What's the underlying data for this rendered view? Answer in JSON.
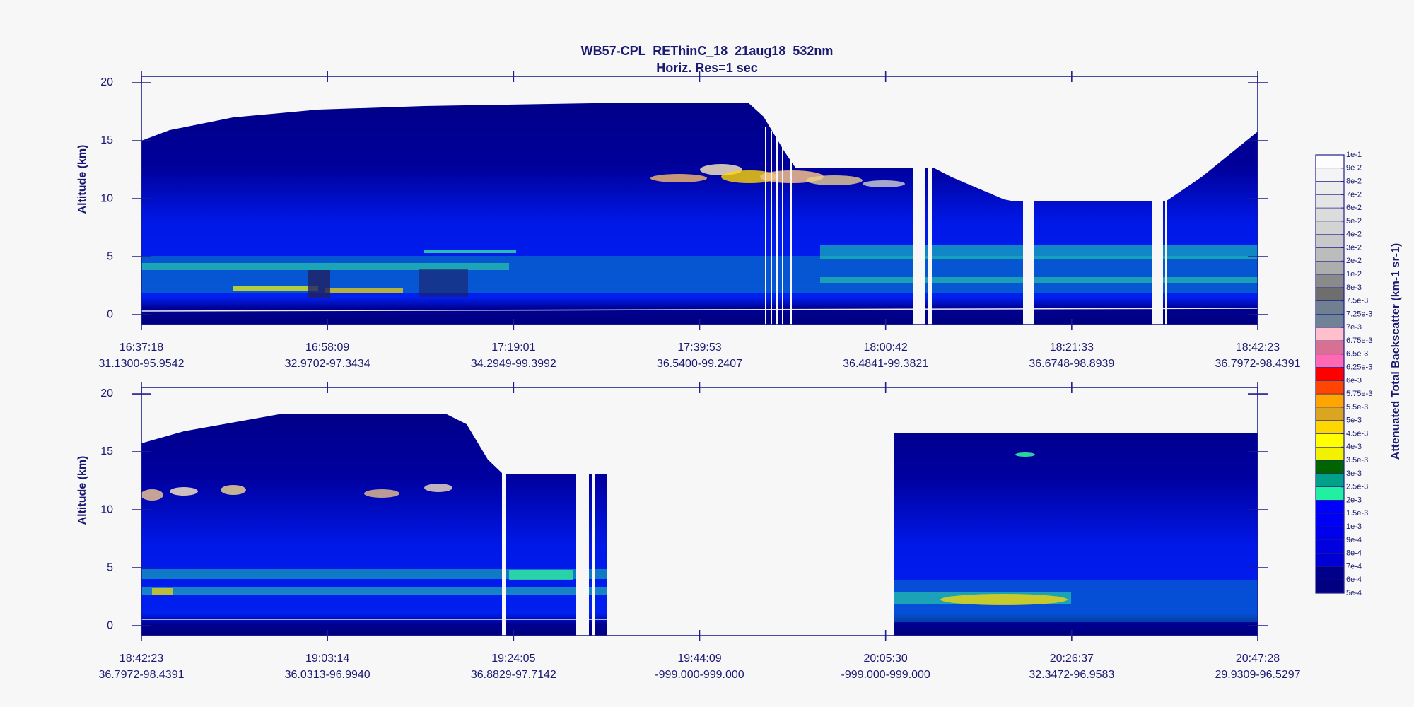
{
  "chart_data": [
    {
      "type": "heatmap",
      "title": "WB57-CPL  REThinC_18  21aug18  532nm",
      "subtitle": "Horiz. Res=1 sec",
      "ylabel": "Altitude (km)",
      "x": [
        "16:37:18",
        "16:58:09",
        "17:19:01",
        "17:39:53",
        "18:00:42",
        "18:21:33",
        "18:42:23"
      ],
      "x_sublabels": [
        "31.1300-95.9542",
        "32.9702-97.3434",
        "34.2949-99.3992",
        "36.5400-99.2407",
        "36.4841-99.3821",
        "36.6748-98.8939",
        "36.7972-98.4391"
      ],
      "ylim": [
        -0.85,
        20.55
      ],
      "yticks": [
        0,
        5,
        10,
        15,
        20
      ]
    },
    {
      "type": "heatmap",
      "ylabel": "Altitude (km)",
      "x": [
        "18:42:23",
        "19:03:14",
        "19:24:05",
        "19:44:09",
        "20:05:30",
        "20:26:37",
        "20:47:28"
      ],
      "x_sublabels": [
        "36.7972-98.4391",
        "36.0313-96.9940",
        "36.8829-97.7142",
        "-999.000-999.000",
        "-999.000-999.000",
        "32.3472-96.9583",
        "29.9309-96.5297"
      ],
      "ylim": [
        -0.85,
        20.55
      ],
      "yticks": [
        0,
        5,
        10,
        15,
        20
      ]
    }
  ],
  "colorbar": {
    "label": "Attenuated Total Backscatter (km-1 sr-1)",
    "ticks": [
      {
        "value": 0.1,
        "label": "1e-1"
      },
      {
        "value": 0.09,
        "label": "9e-2"
      },
      {
        "value": 0.08,
        "label": "8e-2"
      },
      {
        "value": 0.07,
        "label": "7e-2"
      },
      {
        "value": 0.06,
        "label": "6e-2"
      },
      {
        "value": 0.05,
        "label": "5e-2"
      },
      {
        "value": 0.04,
        "label": "4e-2"
      },
      {
        "value": 0.03,
        "label": "3e-2"
      },
      {
        "value": 0.02,
        "label": "2e-2"
      },
      {
        "value": 0.01,
        "label": "1e-2"
      },
      {
        "value": 0.008,
        "label": "8e-3"
      },
      {
        "value": 0.0075,
        "label": "7.5e-3"
      },
      {
        "value": 0.00725,
        "label": "7.25e-3"
      },
      {
        "value": 0.007,
        "label": "7e-3"
      },
      {
        "value": 0.00675,
        "label": "6.75e-3"
      },
      {
        "value": 0.0065,
        "label": "6.5e-3"
      },
      {
        "value": 0.00625,
        "label": "6.25e-3"
      },
      {
        "value": 0.006,
        "label": "6e-3"
      },
      {
        "value": 0.00575,
        "label": "5.75e-3"
      },
      {
        "value": 0.0055,
        "label": "5.5e-3"
      },
      {
        "value": 0.005,
        "label": "5e-3"
      },
      {
        "value": 0.0045,
        "label": "4.5e-3"
      },
      {
        "value": 0.004,
        "label": "4e-3"
      },
      {
        "value": 0.0035,
        "label": "3.5e-3"
      },
      {
        "value": 0.003,
        "label": "3e-3"
      },
      {
        "value": 0.0025,
        "label": "2.5e-3"
      },
      {
        "value": 0.002,
        "label": "2e-3"
      },
      {
        "value": 0.0015,
        "label": "1.5e-3"
      },
      {
        "value": 0.001,
        "label": "1e-3"
      },
      {
        "value": 0.0009,
        "label": "9e-4"
      },
      {
        "value": 0.0008,
        "label": "8e-4"
      },
      {
        "value": 0.0007,
        "label": "7e-4"
      },
      {
        "value": 0.0006,
        "label": "6e-4"
      },
      {
        "value": 0.0005,
        "label": "5e-4"
      }
    ],
    "colors": [
      "#fdfdfd",
      "#f4f4f4",
      "#ececec",
      "#e4e4e4",
      "#dcdcdc",
      "#d3d3d3",
      "#c8c8c8",
      "#bcbcbc",
      "#adadad",
      "#8a8a8a",
      "#6e6e6e",
      "#708090",
      "#6f8296",
      "#ffc0cb",
      "#d87093",
      "#ff69b4",
      "#ff0000",
      "#ff4500",
      "#ffa500",
      "#daa520",
      "#ffd700",
      "#ffff00",
      "#f2f200",
      "#006400",
      "#00a08a",
      "#20f0a0",
      "#0000ff",
      "#0000f4",
      "#0000ea",
      "#0000e0",
      "#0000d4",
      "#00008b",
      "#000080"
    ]
  }
}
